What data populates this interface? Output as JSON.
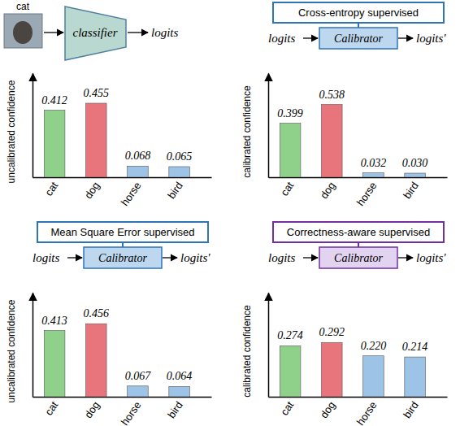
{
  "chart_data": [
    {
      "type": "bar",
      "annotations": [
        "cat",
        "classifier",
        "logits"
      ],
      "y_label": "uncalibrated confidence",
      "categories": [
        "cat",
        "dog",
        "horse",
        "bird"
      ],
      "values": [
        0.412,
        0.455,
        0.068,
        0.065
      ],
      "colors": [
        "#8fd08a",
        "#e8747c",
        "#9dc3e6",
        "#9dc3e6"
      ],
      "ylim": [
        0,
        0.64
      ],
      "data_labels": true,
      "tick_labels": "x"
    },
    {
      "type": "bar",
      "title": "Cross-entropy supervised",
      "annotations": [
        "logits",
        "Calibrator",
        "logits'"
      ],
      "y_label": "calibrated confidence",
      "categories": [
        "cat",
        "dog",
        "horse",
        "bird"
      ],
      "values": [
        0.399,
        0.538,
        0.032,
        0.03
      ],
      "value_labels": [
        "0.399",
        "0.538",
        "0.032",
        "0.030"
      ],
      "colors": [
        "#8fd08a",
        "#e8747c",
        "#9dc3e6",
        "#9dc3e6"
      ],
      "ylim": [
        0,
        0.77
      ],
      "data_labels": true,
      "tick_labels": "x"
    },
    {
      "type": "bar",
      "title": "Mean Square Error supervised",
      "annotations": [
        "logits",
        "Calibrator",
        "logits'"
      ],
      "y_label": "uncalibrated confidence",
      "categories": [
        "cat",
        "dog",
        "horse",
        "bird"
      ],
      "values": [
        0.413,
        0.456,
        0.067,
        0.064
      ],
      "colors": [
        "#8fd08a",
        "#e8747c",
        "#9dc3e6",
        "#9dc3e6"
      ],
      "ylim": [
        0,
        0.65
      ],
      "data_labels": true,
      "tick_labels": "x"
    },
    {
      "type": "bar",
      "title": "Correctness-aware supervised",
      "annotations": [
        "logits",
        "Calibrator",
        "logits'"
      ],
      "y_label": "calibrated confidence",
      "categories": [
        "cat",
        "dog",
        "horse",
        "bird"
      ],
      "values": [
        0.274,
        0.292,
        0.22,
        0.214
      ],
      "value_labels": [
        "0.274",
        "0.292",
        "0.220",
        "0.214"
      ],
      "colors": [
        "#8fd08a",
        "#e8747c",
        "#9dc3e6",
        "#9dc3e6"
      ],
      "ylim": [
        0,
        0.56
      ],
      "data_labels": true,
      "tick_labels": "x"
    }
  ]
}
